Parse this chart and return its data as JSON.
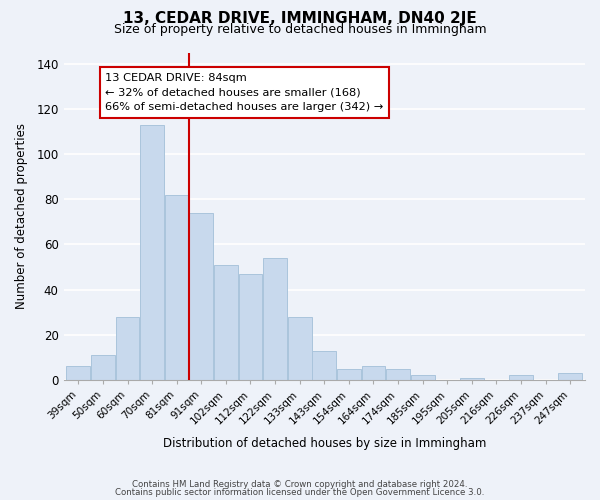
{
  "title": "13, CEDAR DRIVE, IMMINGHAM, DN40 2JE",
  "subtitle": "Size of property relative to detached houses in Immingham",
  "xlabel": "Distribution of detached houses by size in Immingham",
  "ylabel": "Number of detached properties",
  "bar_labels": [
    "39sqm",
    "50sqm",
    "60sqm",
    "70sqm",
    "81sqm",
    "91sqm",
    "102sqm",
    "112sqm",
    "122sqm",
    "133sqm",
    "143sqm",
    "154sqm",
    "164sqm",
    "174sqm",
    "185sqm",
    "195sqm",
    "205sqm",
    "216sqm",
    "226sqm",
    "237sqm",
    "247sqm"
  ],
  "bar_values": [
    6,
    11,
    28,
    113,
    82,
    74,
    51,
    47,
    54,
    28,
    13,
    5,
    6,
    5,
    2,
    0,
    1,
    0,
    2,
    0,
    3
  ],
  "bar_color": "#c8d9ed",
  "bar_edge_color": "#aac4dc",
  "vline_x": 4.5,
  "vline_color": "#cc0000",
  "annotation_title": "13 CEDAR DRIVE: 84sqm",
  "annotation_line1": "← 32% of detached houses are smaller (168)",
  "annotation_line2": "66% of semi-detached houses are larger (342) →",
  "annotation_box_color": "#ffffff",
  "annotation_box_edge": "#cc0000",
  "ylim": [
    0,
    145
  ],
  "yticks": [
    0,
    20,
    40,
    60,
    80,
    100,
    120,
    140
  ],
  "footer1": "Contains HM Land Registry data © Crown copyright and database right 2024.",
  "footer2": "Contains public sector information licensed under the Open Government Licence 3.0.",
  "background_color": "#eef2f9"
}
